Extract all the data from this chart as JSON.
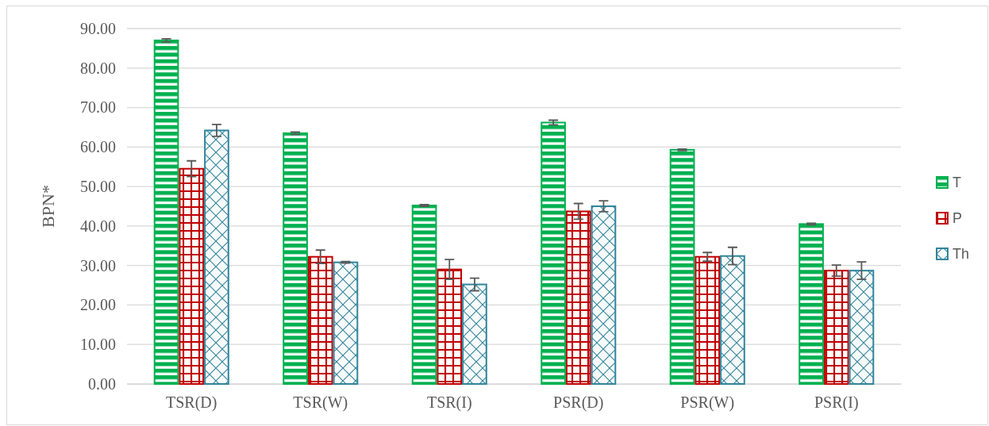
{
  "chart_data": {
    "type": "bar",
    "ylabel": "BPN*",
    "categories": [
      "TSR(D)",
      "TSR(W)",
      "TSR(I)",
      "PSR(D)",
      "PSR(W)",
      "PSR(I)"
    ],
    "series": [
      {
        "name": "T",
        "color": "#00b050",
        "values": [
          87.0,
          63.5,
          45.2,
          66.2,
          59.3,
          40.5
        ],
        "errors": [
          0.4,
          0.3,
          0.2,
          0.6,
          0.2,
          0.2
        ]
      },
      {
        "name": "P",
        "color": "#c00000",
        "values": [
          54.5,
          32.2,
          29.0,
          43.7,
          32.2,
          28.7
        ],
        "errors": [
          2.0,
          1.7,
          2.5,
          2.0,
          1.1,
          1.4
        ]
      },
      {
        "name": "Th",
        "color": "#31859c",
        "values": [
          64.2,
          30.8,
          25.2,
          45.0,
          32.4,
          28.7
        ],
        "errors": [
          1.5,
          0.2,
          1.6,
          1.4,
          2.2,
          2.2
        ]
      }
    ],
    "ylim": [
      0,
      90
    ],
    "yticks": [
      {
        "value": 0,
        "label": "0.00"
      },
      {
        "value": 10,
        "label": "10.00"
      },
      {
        "value": 20,
        "label": "20.00"
      },
      {
        "value": 30,
        "label": "30.00"
      },
      {
        "value": 40,
        "label": "40.00"
      },
      {
        "value": 50,
        "label": "50.00"
      },
      {
        "value": 60,
        "label": "60.00"
      },
      {
        "value": 70,
        "label": "70.00"
      },
      {
        "value": 80,
        "label": "80.00"
      },
      {
        "value": 90,
        "label": "90.00"
      }
    ],
    "grid": "y",
    "legend": "right"
  }
}
